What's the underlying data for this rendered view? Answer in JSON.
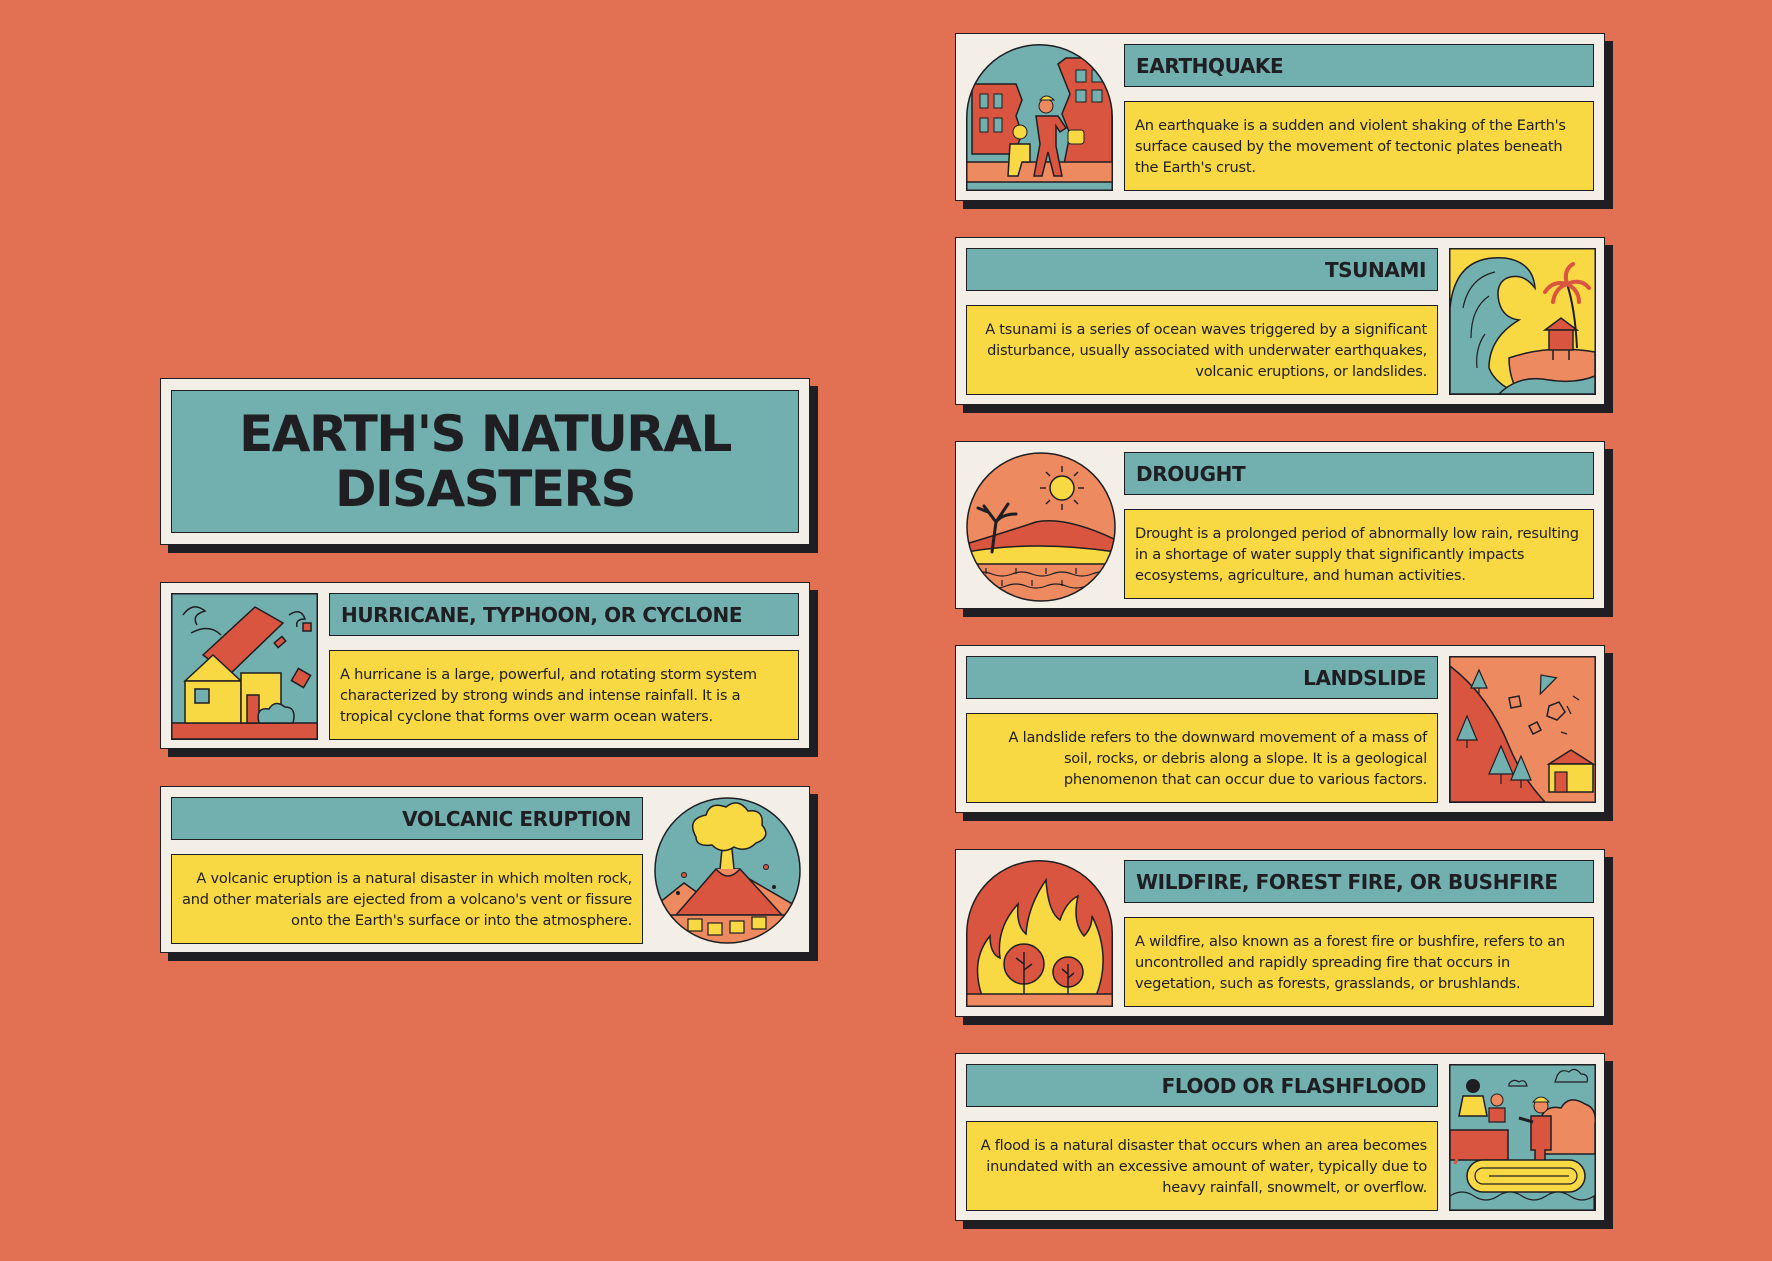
{
  "title": "EARTH'S NATURAL DISASTERS",
  "cards": {
    "hurricane": {
      "heading": "HURRICANE, TYPHOON, OR CYCLONE",
      "text": "A hurricane is a large, powerful, and rotating storm system characterized by strong winds and intense rainfall. It is a tropical cyclone that forms over warm ocean waters."
    },
    "volcano": {
      "heading": "VOLCANIC ERUPTION",
      "text": "A volcanic eruption is a natural disaster in which molten rock, and other materials are ejected from a volcano's vent or fissure onto the Earth's surface or into the atmosphere."
    },
    "earthquake": {
      "heading": "EARTHQUAKE",
      "text": "An earthquake is a sudden and violent shaking of the Earth's surface caused by the movement of tectonic plates beneath the Earth's crust."
    },
    "tsunami": {
      "heading": "TSUNAMI",
      "text": "A tsunami is a series of ocean waves triggered by a significant disturbance, usually associated with underwater earthquakes, volcanic eruptions, or landslides."
    },
    "drought": {
      "heading": "DROUGHT",
      "text": "Drought is a prolonged period of abnormally low rain, resulting in a shortage of water supply that significantly impacts ecosystems, agriculture, and human activities."
    },
    "landslide": {
      "heading": "LANDSLIDE",
      "text": "A landslide refers to the downward movement of a mass of soil, rocks, or debris along a slope. It is a geological phenomenon that can occur due to various factors."
    },
    "wildfire": {
      "heading": "WILDFIRE, FOREST FIRE, OR BUSHFIRE",
      "text": "A wildfire, also known as a forest fire or bushfire, refers to an uncontrolled and rapidly spreading fire that occurs in vegetation, such as forests, grasslands, or brushlands."
    },
    "flood": {
      "heading": "FLOOD OR FLASHFLOOD",
      "text": "A flood is a natural disaster that occurs when an area becomes inundated with an excessive amount of water, typically due to heavy rainfall, snowmelt, or overflow."
    }
  },
  "colors": {
    "background": "#E27052",
    "card": "#F3EFE6",
    "teal": "#72AFAF",
    "yellow": "#F8D843",
    "ink": "#1F1E22",
    "red": "#D9553F",
    "orange": "#EE8A60"
  }
}
